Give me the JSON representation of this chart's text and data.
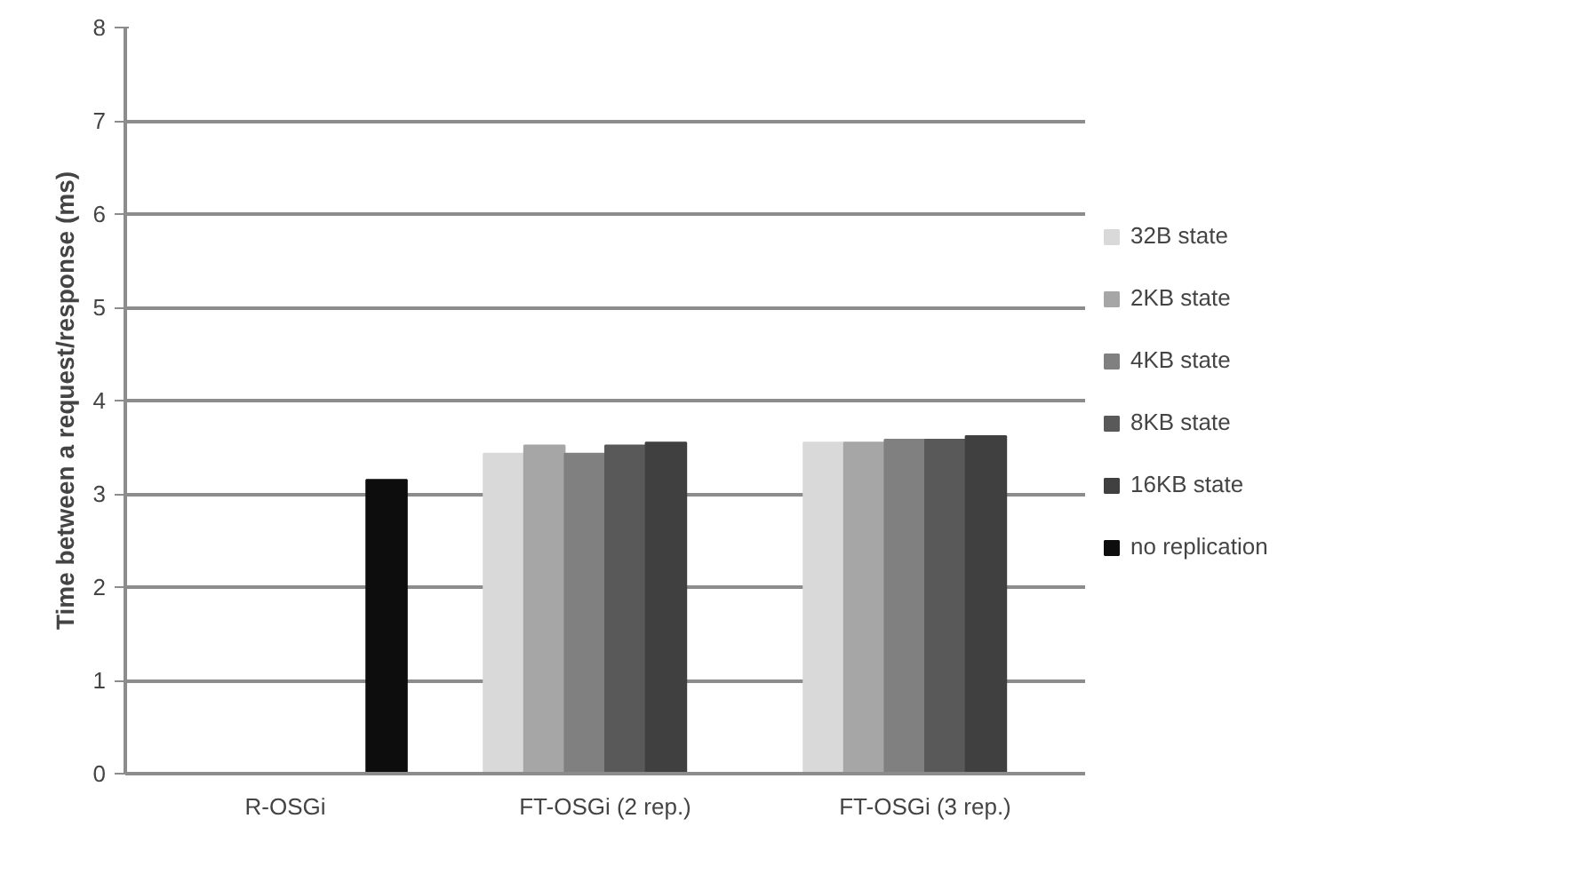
{
  "chart_data": {
    "type": "bar",
    "ylabel": "Time between a request/response (ms)",
    "categories": [
      "R-OSGi",
      "FT-OSGi (2 rep.)",
      "FT-OSGi (3 rep.)"
    ],
    "series": [
      {
        "name": "32B state",
        "color": "#d9d9d9",
        "values": [
          null,
          3.43,
          3.55
        ]
      },
      {
        "name": "2KB state",
        "color": "#a6a6a6",
        "values": [
          null,
          3.52,
          3.55
        ]
      },
      {
        "name": "4KB state",
        "color": "#808080",
        "values": [
          null,
          3.43,
          3.58
        ]
      },
      {
        "name": "8KB state",
        "color": "#595959",
        "values": [
          null,
          3.52,
          3.58
        ]
      },
      {
        "name": "16KB state",
        "color": "#404040",
        "values": [
          null,
          3.55,
          3.62
        ]
      },
      {
        "name": "no replication",
        "color": "#0d0d0d",
        "values": [
          3.15,
          null,
          null
        ]
      }
    ],
    "ylim": [
      0,
      8
    ],
    "yticks": [
      0,
      1,
      2,
      3,
      4,
      5,
      6,
      7,
      8
    ],
    "grid": "y",
    "legend": "right"
  }
}
